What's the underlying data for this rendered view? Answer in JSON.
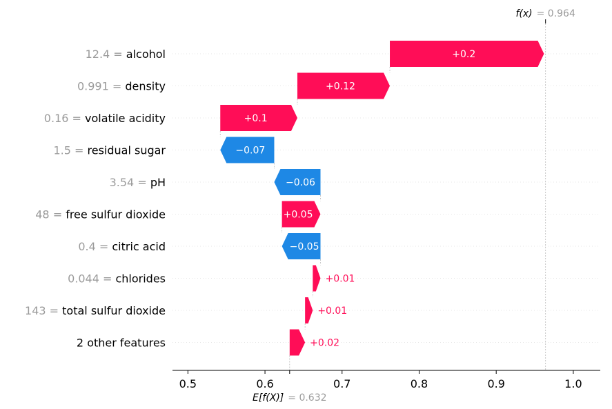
{
  "chart_data": {
    "type": "waterfall",
    "xlim": [
      0.48,
      1.035
    ],
    "x_ticks": [
      0.5,
      0.6,
      0.7,
      0.8,
      0.9,
      1.0
    ],
    "x_tick_labels": [
      "0.5",
      "0.6",
      "0.7",
      "0.8",
      "0.9",
      "1.0"
    ],
    "base_value": 0.632,
    "base_label": "E[f(X)]",
    "base_value_text": "= 0.632",
    "output_value": 0.964,
    "output_label": "f(x)",
    "output_value_text": "= 0.964",
    "grid": "horizontal dotted",
    "features": [
      {
        "value": "12.4",
        "name": "alcohol",
        "contribution": 0.2,
        "label": "+0.2"
      },
      {
        "value": "0.991",
        "name": "density",
        "contribution": 0.12,
        "label": "+0.12"
      },
      {
        "value": "0.16",
        "name": "volatile acidity",
        "contribution": 0.1,
        "label": "+0.1"
      },
      {
        "value": "1.5",
        "name": "residual sugar",
        "contribution": -0.07,
        "label": "−0.07"
      },
      {
        "value": "3.54",
        "name": "pH",
        "contribution": -0.06,
        "label": "−0.06"
      },
      {
        "value": "48",
        "name": "free sulfur dioxide",
        "contribution": 0.05,
        "label": "+0.05"
      },
      {
        "value": "0.4",
        "name": "citric acid",
        "contribution": -0.05,
        "label": "−0.05"
      },
      {
        "value": "0.044",
        "name": "chlorides",
        "contribution": 0.01,
        "label": "+0.01"
      },
      {
        "value": "143",
        "name": "total sulfur dioxide",
        "contribution": 0.01,
        "label": "+0.01"
      },
      {
        "value": "",
        "name": "2 other features",
        "contribution": 0.02,
        "label": "+0.02"
      }
    ]
  },
  "colors": {
    "positive": "#ff0d57",
    "negative": "#1e88e5",
    "feature_value_text": "#9b9b9b",
    "grid": "#e5e5e5",
    "axis": "#000000"
  }
}
